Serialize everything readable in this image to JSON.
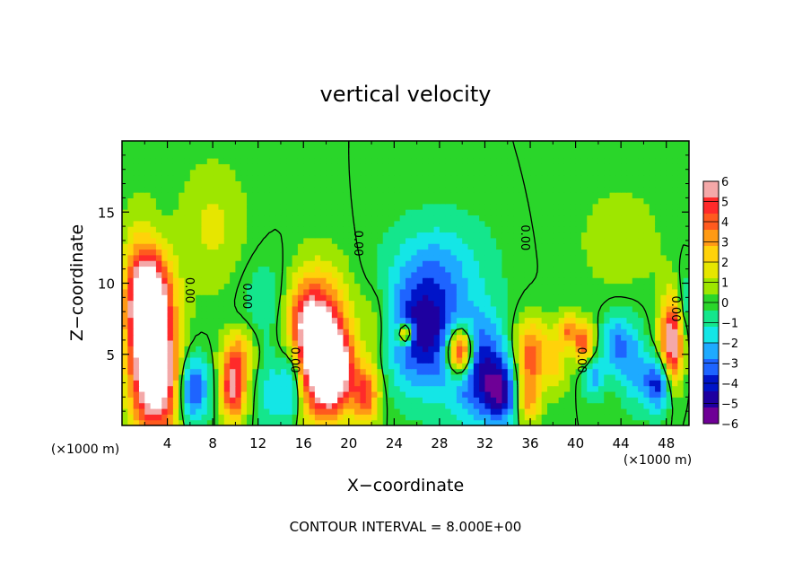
{
  "chart_data": {
    "type": "heatmap",
    "title": "vertical velocity",
    "xlabel": "X−coordinate",
    "ylabel": "Z−coordinate",
    "x_unit": "(×1000 m)",
    "x_unit_right": "(×1000 m)",
    "xlim": [
      0,
      50
    ],
    "ylim": [
      0,
      20
    ],
    "x_ticks": [
      "4",
      "8",
      "12",
      "16",
      "20",
      "24",
      "28",
      "32",
      "36",
      "40",
      "44",
      "48"
    ],
    "y_ticks": [
      "5",
      "10",
      "15"
    ],
    "footer": "CONTOUR INTERVAL = 8.000E+00",
    "contour_labels": [
      "0.00",
      "0.00",
      "0.00",
      "0.00",
      "0.00"
    ],
    "colorbar": {
      "ticks": [
        "6",
        "5",
        "4",
        "3",
        "2",
        "1",
        "0",
        "−1",
        "−2",
        "−3",
        "−4",
        "−5",
        "−6"
      ],
      "colors": [
        "#f4a8a8",
        "#ff2a2a",
        "#ff5a1e",
        "#ff9a14",
        "#ffd20a",
        "#e6e600",
        "#9ee600",
        "#2ad62a",
        "#14e68c",
        "#14e6e6",
        "#1eaaff",
        "#1e64ff",
        "#0014c8",
        "#1e00a0",
        "#6e0096"
      ]
    },
    "features": [
      {
        "x": 3.2,
        "z": 3.6,
        "amp": 8.5,
        "sx": 1.3,
        "sz": 3.0
      },
      {
        "x": 2.6,
        "z": 9.2,
        "amp": 7.0,
        "sx": 1.3,
        "sz": 2.3
      },
      {
        "x": 1.5,
        "z": 7.0,
        "amp": 4.0,
        "sx": 1.0,
        "sz": 4.5
      },
      {
        "x": 6.2,
        "z": 2.6,
        "amp": -4.6,
        "sx": 0.9,
        "sz": 1.6
      },
      {
        "x": 9.8,
        "z": 2.5,
        "amp": 6.5,
        "sx": 0.7,
        "sz": 1.5
      },
      {
        "x": 10.2,
        "z": 5.0,
        "amp": 3.5,
        "sx": 0.9,
        "sz": 1.2
      },
      {
        "x": 13.3,
        "z": 2.3,
        "amp": -2.0,
        "sx": 0.8,
        "sz": 2.0
      },
      {
        "x": 15.0,
        "z": 3.0,
        "amp": -3.6,
        "sx": 0.6,
        "sz": 1.8
      },
      {
        "x": 17.6,
        "z": 5.5,
        "amp": 8.5,
        "sx": 1.6,
        "sz": 3.2
      },
      {
        "x": 18.6,
        "z": 3.8,
        "amp": 6.0,
        "sx": 1.2,
        "sz": 1.8
      },
      {
        "x": 21.5,
        "z": 2.2,
        "amp": 5.0,
        "sx": 0.8,
        "sz": 1.4
      },
      {
        "x": 16.0,
        "z": 7.5,
        "amp": 3.0,
        "sx": 1.0,
        "sz": 2.0
      },
      {
        "x": 26.5,
        "z": 6.5,
        "amp": -5.0,
        "sx": 2.2,
        "sz": 2.8
      },
      {
        "x": 25.0,
        "z": 6.5,
        "amp": 8.0,
        "sx": 0.4,
        "sz": 0.5
      },
      {
        "x": 29.8,
        "z": 5.2,
        "amp": 9.5,
        "sx": 0.8,
        "sz": 1.2
      },
      {
        "x": 31.5,
        "z": 4.0,
        "amp": -5.0,
        "sx": 1.8,
        "sz": 2.5
      },
      {
        "x": 33.5,
        "z": 2.2,
        "amp": -4.0,
        "sx": 1.0,
        "sz": 1.5
      },
      {
        "x": 28.0,
        "z": 11.0,
        "amp": -2.2,
        "sx": 3.0,
        "sz": 2.5
      },
      {
        "x": 22.5,
        "z": 7.0,
        "amp": 1.5,
        "sx": 1.0,
        "sz": 2.0
      },
      {
        "x": 36.0,
        "z": 5.2,
        "amp": 4.5,
        "sx": 1.0,
        "sz": 1.6
      },
      {
        "x": 35.8,
        "z": 2.0,
        "amp": 4.0,
        "sx": 0.7,
        "sz": 1.3
      },
      {
        "x": 38.3,
        "z": 4.6,
        "amp": 2.5,
        "sx": 0.7,
        "sz": 1.5
      },
      {
        "x": 39.3,
        "z": 6.8,
        "amp": 4.0,
        "sx": 0.5,
        "sz": 0.7
      },
      {
        "x": 40.7,
        "z": 5.8,
        "amp": 5.0,
        "sx": 0.6,
        "sz": 1.0
      },
      {
        "x": 41.6,
        "z": 3.5,
        "amp": -3.0,
        "sx": 0.6,
        "sz": 1.0
      },
      {
        "x": 43.5,
        "z": 5.8,
        "amp": -3.0,
        "sx": 0.8,
        "sz": 1.5
      },
      {
        "x": 45.0,
        "z": 4.5,
        "amp": -2.5,
        "sx": 0.8,
        "sz": 2.0
      },
      {
        "x": 47.3,
        "z": 3.0,
        "amp": -5.0,
        "sx": 0.9,
        "sz": 1.4
      },
      {
        "x": 48.7,
        "z": 5.8,
        "amp": 8.5,
        "sx": 0.8,
        "sz": 2.2
      },
      {
        "x": 49.5,
        "z": 6.5,
        "amp": -4.0,
        "sx": 0.5,
        "sz": 2.5
      },
      {
        "x": 8.0,
        "z": 14.0,
        "amp": 1.5,
        "sx": 2.0,
        "sz": 3.0
      },
      {
        "x": 12.5,
        "z": 9.0,
        "amp": -1.0,
        "sx": 1.5,
        "sz": 2.0
      },
      {
        "x": 44.0,
        "z": 13.0,
        "amp": 0.8,
        "sx": 3.0,
        "sz": 3.0
      }
    ]
  }
}
